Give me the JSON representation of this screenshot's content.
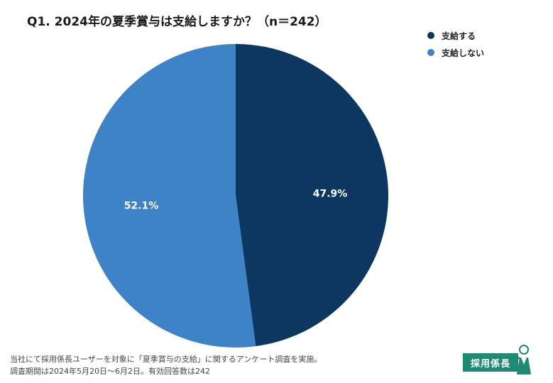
{
  "title": "Q1. 2024年の夏季賞与は支給しますか？（n＝242）",
  "chart_data": {
    "type": "pie",
    "title": "Q1. 2024年の夏季賞与は支給しますか？（n＝242）",
    "start_angle_deg": 0,
    "direction": "clockwise",
    "legend_position": "top-right",
    "slices": [
      {
        "label": "支給する",
        "value": 47.9,
        "display": "47.9%",
        "color": "#0b3761"
      },
      {
        "label": "支給しない",
        "value": 52.1,
        "display": "52.1%",
        "color": "#3e83c6"
      }
    ]
  },
  "footnote": {
    "line1": "当社にて採用係長ユーザーを対象に「夏季賞与の支給」に関するアンケート調査を実施。",
    "line2": "調査期間は2024年5月20日～6月2日。有効回答数は242"
  },
  "logo": {
    "text": "採用係長",
    "color": "#1d8a74"
  }
}
